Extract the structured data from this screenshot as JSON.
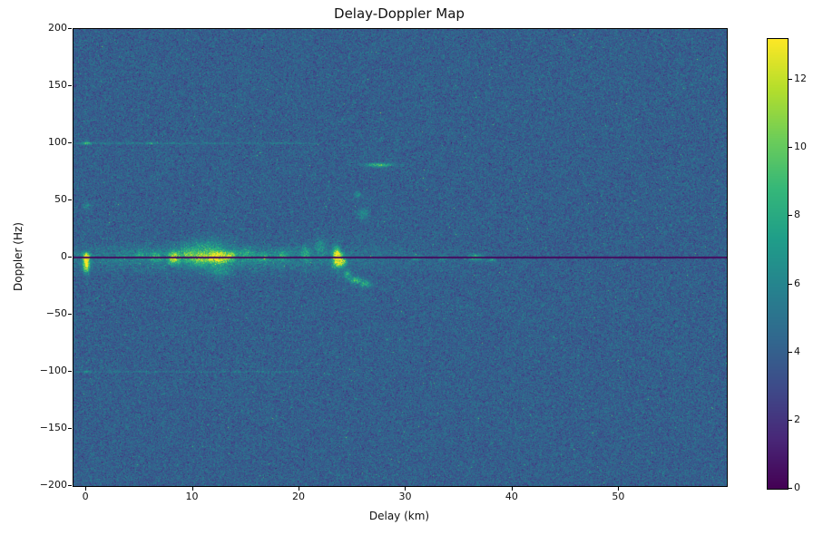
{
  "chart_data": {
    "type": "heatmap",
    "title": "Delay-Doppler Map",
    "xlabel": "Delay (km)",
    "ylabel": "Doppler (Hz)",
    "xlim": [
      -1.2,
      60.1
    ],
    "ylim": [
      -200,
      200
    ],
    "x_ticks": [
      0,
      10,
      20,
      30,
      40,
      50
    ],
    "y_ticks": [
      -200,
      -150,
      -100,
      -50,
      0,
      50,
      100,
      150,
      200
    ],
    "colorbar": {
      "vmin": 0,
      "vmax": 13.2,
      "ticks": [
        0,
        2,
        4,
        6,
        8,
        10,
        12
      ]
    },
    "colormap": "viridis",
    "colormap_stops": [
      [
        68,
        1,
        84
      ],
      [
        72,
        40,
        120
      ],
      [
        62,
        74,
        137
      ],
      [
        49,
        104,
        142
      ],
      [
        38,
        130,
        142
      ],
      [
        31,
        158,
        137
      ],
      [
        53,
        183,
        121
      ],
      [
        109,
        205,
        89
      ],
      [
        180,
        222,
        44
      ],
      [
        253,
        231,
        37
      ]
    ],
    "background_noise": {
      "mean": 4.0,
      "std": 0.85,
      "spike_probability": 0.004,
      "spike_max": 5
    },
    "zero_doppler_line": {
      "doppler_hz": 0,
      "value": 0.35,
      "half_width_hz": 0.55
    },
    "clutter_band": {
      "center_delay_km": 12,
      "delay_sigma_km": 16,
      "doppler_sigma_hz": 10,
      "amplitude": 2.0
    },
    "interference_lines": [
      {
        "doppler_hz": 100,
        "delay_max_km": 22,
        "amplitude": 1.3
      },
      {
        "doppler_hz": -100,
        "delay_max_km": 20,
        "amplitude": 0.9
      }
    ],
    "features_format": "[delay_km, doppler_hz, sigma_delay_km, sigma_doppler_hz, amplitude]",
    "features": [
      [
        0,
        -6,
        0.3,
        7,
        9
      ],
      [
        0,
        1,
        0.35,
        3,
        7
      ],
      [
        3.2,
        0,
        0.4,
        2,
        2
      ],
      [
        5,
        2,
        0.5,
        3,
        2
      ],
      [
        6.5,
        1,
        0.5,
        4,
        3.5
      ],
      [
        8.2,
        0,
        0.5,
        5,
        7
      ],
      [
        9.5,
        3,
        0.8,
        7,
        3
      ],
      [
        10.8,
        -1,
        0.9,
        6,
        4.5
      ],
      [
        11.5,
        8,
        1.6,
        9,
        2.5
      ],
      [
        12.4,
        0,
        0.8,
        5,
        8
      ],
      [
        12.5,
        -12,
        1.2,
        5,
        2.5
      ],
      [
        13.6,
        1,
        0.5,
        4,
        5
      ],
      [
        15,
        3,
        0.8,
        5,
        2
      ],
      [
        16.6,
        0,
        0.6,
        3,
        2.5
      ],
      [
        18.4,
        2,
        0.5,
        4,
        2.5
      ],
      [
        20.6,
        4,
        0.4,
        6,
        3
      ],
      [
        22,
        10,
        0.5,
        8,
        2
      ],
      [
        23.5,
        0,
        0.35,
        8,
        10
      ],
      [
        24,
        -3,
        0.35,
        5,
        7
      ],
      [
        24.5,
        -15,
        0.4,
        4,
        3.5
      ],
      [
        25.3,
        -20,
        0.5,
        3,
        4.5
      ],
      [
        26.2,
        -23,
        0.5,
        3,
        4
      ],
      [
        26,
        38,
        0.5,
        5,
        2.5
      ],
      [
        27.5,
        81,
        1.3,
        1.6,
        5
      ],
      [
        25.5,
        55,
        0.3,
        3,
        2
      ],
      [
        31,
        0,
        0.5,
        2,
        3
      ],
      [
        33.5,
        0,
        0.4,
        2,
        3
      ],
      [
        36.5,
        0,
        0.7,
        2.5,
        4.5
      ],
      [
        38,
        -2,
        0.4,
        2,
        2.5
      ],
      [
        0,
        100,
        0.4,
        1.5,
        4
      ],
      [
        6,
        100,
        0.3,
        1.2,
        2
      ],
      [
        0,
        -100,
        0.3,
        1.3,
        2.5
      ],
      [
        0,
        45,
        0.3,
        2.5,
        2.5
      ]
    ]
  }
}
